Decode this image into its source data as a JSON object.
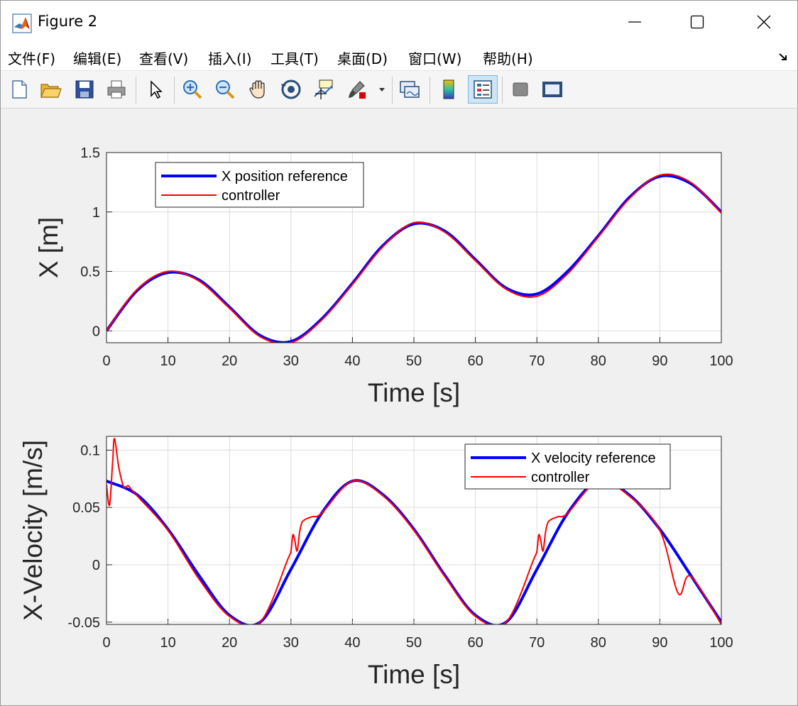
{
  "window": {
    "title": "Figure 2"
  },
  "menu": [
    "文件(F)",
    "编辑(E)",
    "查看(V)",
    "插入(I)",
    "工具(T)",
    "桌面(D)",
    "窗口(W)",
    "帮助(H)"
  ],
  "toolbar": {
    "icons": [
      "new-figure-icon",
      "open-file-icon",
      "save-icon",
      "print-icon",
      "select-arrow-icon",
      "zoom-in-icon",
      "zoom-out-icon",
      "pan-hand-icon",
      "rotate-3d-icon",
      "data-cursor-icon",
      "brush-icon",
      "link-plot-icon",
      "colorbar-icon",
      "legend-icon",
      "hide-plot-tools-icon",
      "show-plot-tools-icon"
    ]
  },
  "colors": {
    "reference": "#0000ff",
    "controller": "#ff0000"
  },
  "chart_data": [
    {
      "type": "line",
      "title": "",
      "xlabel": "Time [s]",
      "ylabel": "X [m]",
      "xlim": [
        0,
        100
      ],
      "ylim": [
        -0.1,
        1.5
      ],
      "xticks": [
        "0",
        "10",
        "20",
        "30",
        "40",
        "50",
        "60",
        "70",
        "80",
        "90",
        "100"
      ],
      "yticks": [
        "0",
        "0.5",
        "1",
        "1.5"
      ],
      "grid": true,
      "legend": {
        "placement": "top-left",
        "entries": [
          "X position reference",
          "controller"
        ]
      },
      "x": [
        0,
        5,
        10,
        15,
        20,
        25,
        30,
        35,
        40,
        45,
        50,
        55,
        60,
        65,
        70,
        75,
        80,
        85,
        90,
        95,
        100
      ],
      "series": [
        {
          "name": "X position reference",
          "color": "#0000ff",
          "values": [
            0.0,
            0.34,
            0.49,
            0.43,
            0.2,
            -0.04,
            -0.09,
            0.1,
            0.4,
            0.72,
            0.9,
            0.84,
            0.6,
            0.36,
            0.31,
            0.5,
            0.8,
            1.12,
            1.3,
            1.24,
            1.0
          ]
        },
        {
          "name": "controller",
          "color": "#ff0000",
          "values": [
            0.0,
            0.35,
            0.5,
            0.42,
            0.19,
            -0.05,
            -0.1,
            0.09,
            0.39,
            0.71,
            0.91,
            0.83,
            0.59,
            0.35,
            0.29,
            0.48,
            0.79,
            1.11,
            1.31,
            1.25,
            0.99
          ]
        }
      ]
    },
    {
      "type": "line",
      "title": "",
      "xlabel": "Time [s]",
      "ylabel": "X-Velocity [m/s]",
      "xlim": [
        0,
        100
      ],
      "ylim": [
        -0.052,
        0.112
      ],
      "xticks": [
        "0",
        "10",
        "20",
        "30",
        "40",
        "50",
        "60",
        "70",
        "80",
        "90",
        "100"
      ],
      "yticks": [
        "-0.05",
        "0",
        "0.05",
        "0.1"
      ],
      "grid": true,
      "legend": {
        "placement": "top-right",
        "entries": [
          "X velocity reference",
          "controller"
        ]
      },
      "x": [
        0,
        5,
        10,
        15,
        20,
        25,
        30,
        35,
        40,
        45,
        50,
        55,
        60,
        65,
        70,
        75,
        80,
        85,
        90,
        95,
        100
      ],
      "series": [
        {
          "name": "X velocity reference",
          "color": "#0000ff",
          "values": [
            0.073,
            0.061,
            0.031,
            -0.009,
            -0.044,
            -0.05,
            -0.004,
            0.045,
            0.073,
            0.061,
            0.031,
            -0.009,
            -0.044,
            -0.05,
            -0.004,
            0.045,
            0.073,
            0.061,
            0.031,
            -0.009,
            -0.05
          ]
        },
        {
          "name": "controller",
          "color": "#ff0000",
          "x": [
            0,
            0.5,
            1,
            1.3,
            2,
            2.8,
            3.5,
            4,
            5,
            10,
            15,
            20,
            25,
            29.5,
            30,
            30.3,
            30.6,
            31,
            31.4,
            31.8,
            32.5,
            33.5,
            35,
            40,
            45,
            50,
            55,
            60,
            65,
            69.5,
            70,
            70.3,
            70.6,
            71,
            71.4,
            71.8,
            72.5,
            73.5,
            75,
            80,
            85,
            90,
            93,
            95,
            100
          ],
          "values": [
            0.07,
            0.052,
            0.09,
            0.11,
            0.085,
            0.068,
            0.069,
            0.066,
            0.06,
            0.03,
            -0.012,
            -0.045,
            -0.05,
            0.005,
            0.012,
            0.026,
            0.022,
            0.012,
            0.028,
            0.037,
            0.04,
            0.042,
            0.045,
            0.073,
            0.06,
            0.03,
            -0.01,
            -0.045,
            -0.05,
            0.005,
            0.012,
            0.026,
            0.022,
            0.012,
            0.028,
            0.037,
            0.04,
            0.042,
            0.045,
            0.073,
            0.06,
            0.03,
            -0.025,
            -0.01,
            -0.052
          ]
        }
      ]
    }
  ]
}
